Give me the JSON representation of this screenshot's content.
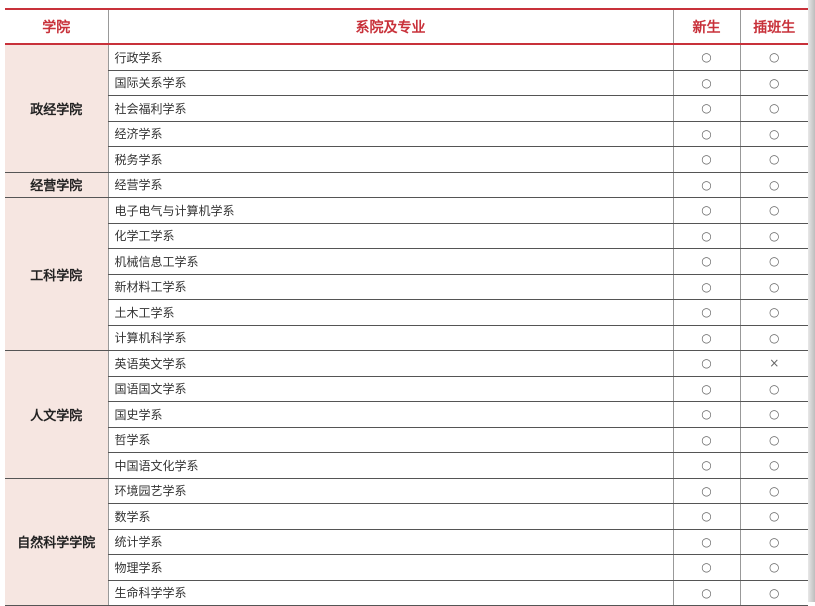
{
  "header": {
    "college": "学院",
    "department": "系院及专业",
    "freshman": "新生",
    "transfer": "插班生"
  },
  "colleges": [
    {
      "name": "政经学院",
      "departments": [
        {
          "name": "行政学系",
          "freshman": "○",
          "transfer": "○"
        },
        {
          "name": "国际关系学系",
          "freshman": "○",
          "transfer": "○"
        },
        {
          "name": "社会福利学系",
          "freshman": "○",
          "transfer": "○"
        },
        {
          "name": "经济学系",
          "freshman": "○",
          "transfer": "○"
        },
        {
          "name": "税务学系",
          "freshman": "○",
          "transfer": "○"
        }
      ]
    },
    {
      "name": "经营学院",
      "departments": [
        {
          "name": "经营学系",
          "freshman": "○",
          "transfer": "○"
        }
      ]
    },
    {
      "name": "工科学院",
      "departments": [
        {
          "name": "电子电气与计算机学系",
          "freshman": "○",
          "transfer": "○"
        },
        {
          "name": "化学工学系",
          "freshman": "○",
          "transfer": "○"
        },
        {
          "name": "机械信息工学系",
          "freshman": "○",
          "transfer": "○"
        },
        {
          "name": "新材料工学系",
          "freshman": "○",
          "transfer": "○"
        },
        {
          "name": "土木工学系",
          "freshman": "○",
          "transfer": "○"
        },
        {
          "name": "计算机科学系",
          "freshman": "○",
          "transfer": "○"
        }
      ]
    },
    {
      "name": "人文学院",
      "departments": [
        {
          "name": "英语英文学系",
          "freshman": "○",
          "transfer": "×"
        },
        {
          "name": "国语国文学系",
          "freshman": "○",
          "transfer": "○"
        },
        {
          "name": "国史学系",
          "freshman": "○",
          "transfer": "○"
        },
        {
          "name": "哲学系",
          "freshman": "○",
          "transfer": "○"
        },
        {
          "name": "中国语文化学系",
          "freshman": "○",
          "transfer": "○"
        }
      ]
    },
    {
      "name": "自然科学学院",
      "departments": [
        {
          "name": "环境园艺学系",
          "freshman": "○",
          "transfer": "○"
        },
        {
          "name": "数学系",
          "freshman": "○",
          "transfer": "○"
        },
        {
          "name": "统计学系",
          "freshman": "○",
          "transfer": "○"
        },
        {
          "name": "物理学系",
          "freshman": "○",
          "transfer": "○"
        },
        {
          "name": "生命科学学系",
          "freshman": "○",
          "transfer": "○"
        }
      ]
    }
  ]
}
